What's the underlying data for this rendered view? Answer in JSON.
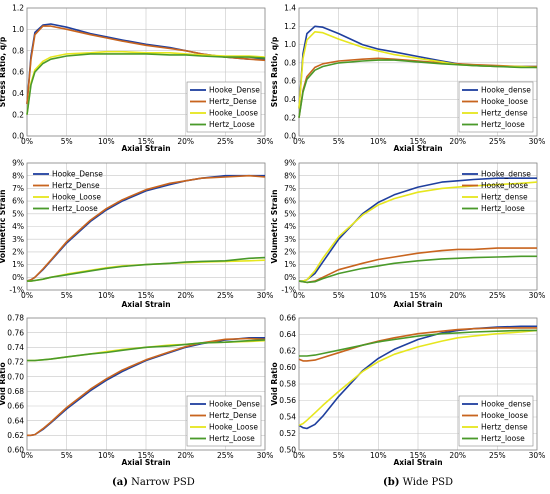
{
  "colors": {
    "series1": "#1f3f9e",
    "series2": "#c8641e",
    "series3": "#e6e61e",
    "series4": "#4a9a2a",
    "grid": "#c8c8c8"
  },
  "captions": [
    {
      "label": "(a)",
      "text": "Narrow PSD"
    },
    {
      "label": "(b)",
      "text": "Wide PSD"
    }
  ],
  "chart_data": [
    {
      "type": "line",
      "xlabel": "Axial Strain",
      "ylabel": "Stress Ratio, q/p",
      "xlim": [
        0,
        30
      ],
      "ylim": [
        0,
        1.2
      ],
      "xunit": "%",
      "yunit": "",
      "xstep": 5,
      "ystep": 0.2,
      "ydec": 1,
      "grid": true,
      "legend": "bottom-right",
      "legend_box": true,
      "x": [
        0,
        0.5,
        1,
        2,
        3,
        5,
        8,
        10,
        12,
        15,
        18,
        20,
        22,
        25,
        28,
        30
      ],
      "series": [
        {
          "name": "Hooke_Dense",
          "values": [
            0.3,
            0.75,
            0.97,
            1.04,
            1.05,
            1.02,
            0.96,
            0.93,
            0.9,
            0.86,
            0.83,
            0.8,
            0.77,
            0.74,
            0.72,
            0.72
          ]
        },
        {
          "name": "Hertz_Dense",
          "values": [
            0.3,
            0.72,
            0.95,
            1.03,
            1.03,
            1.0,
            0.95,
            0.92,
            0.89,
            0.85,
            0.82,
            0.8,
            0.77,
            0.74,
            0.72,
            0.71
          ]
        },
        {
          "name": "Hooke_Loose",
          "values": [
            0.2,
            0.5,
            0.62,
            0.7,
            0.74,
            0.77,
            0.78,
            0.79,
            0.79,
            0.78,
            0.78,
            0.77,
            0.76,
            0.75,
            0.75,
            0.74
          ]
        },
        {
          "name": "Hertz_Loose",
          "values": [
            0.2,
            0.48,
            0.6,
            0.68,
            0.72,
            0.75,
            0.77,
            0.77,
            0.77,
            0.77,
            0.76,
            0.76,
            0.75,
            0.74,
            0.74,
            0.73
          ]
        }
      ]
    },
    {
      "type": "line",
      "xlabel": "Axial Strain",
      "ylabel": "Stress Ratio, q/p",
      "xlim": [
        0,
        30
      ],
      "ylim": [
        0,
        1.4
      ],
      "xunit": "%",
      "yunit": "",
      "xstep": 5,
      "ystep": 0.2,
      "ydec": 1,
      "grid": true,
      "legend": "bottom-right",
      "legend_box": true,
      "x": [
        0,
        0.5,
        1,
        2,
        3,
        5,
        8,
        10,
        12,
        15,
        18,
        20,
        22,
        25,
        28,
        30
      ],
      "series": [
        {
          "name": "Hooke_dense",
          "values": [
            0.3,
            0.9,
            1.12,
            1.2,
            1.19,
            1.12,
            1.0,
            0.95,
            0.92,
            0.87,
            0.82,
            0.79,
            0.77,
            0.76,
            0.76,
            0.76
          ]
        },
        {
          "name": "Hooke_loose",
          "values": [
            0.2,
            0.5,
            0.65,
            0.75,
            0.79,
            0.82,
            0.84,
            0.85,
            0.84,
            0.82,
            0.8,
            0.79,
            0.78,
            0.77,
            0.76,
            0.76
          ]
        },
        {
          "name": "Hertz_dense",
          "values": [
            0.3,
            0.85,
            1.05,
            1.14,
            1.13,
            1.06,
            0.97,
            0.93,
            0.89,
            0.85,
            0.81,
            0.78,
            0.77,
            0.76,
            0.76,
            0.75
          ]
        },
        {
          "name": "Hertz_loose",
          "values": [
            0.2,
            0.48,
            0.62,
            0.72,
            0.76,
            0.8,
            0.82,
            0.83,
            0.83,
            0.81,
            0.79,
            0.78,
            0.77,
            0.76,
            0.75,
            0.75
          ]
        }
      ]
    },
    {
      "type": "line",
      "xlabel": "Axial Strain",
      "ylabel": "Volumetric Strain",
      "xlim": [
        0,
        30
      ],
      "ylim": [
        -1,
        9
      ],
      "xunit": "%",
      "yunit": "%",
      "xstep": 5,
      "ystep": 1,
      "ydec": 0,
      "grid": true,
      "legend": "top-left",
      "legend_box": false,
      "x": [
        0,
        0.5,
        1,
        2,
        3,
        5,
        8,
        10,
        12,
        15,
        18,
        20,
        22,
        25,
        28,
        30
      ],
      "series": [
        {
          "name": "Hooke_Dense",
          "values": [
            -0.3,
            -0.2,
            0.0,
            0.6,
            1.3,
            2.7,
            4.4,
            5.3,
            6.0,
            6.8,
            7.3,
            7.6,
            7.8,
            8.0,
            8.0,
            8.0
          ]
        },
        {
          "name": "Hertz_Dense",
          "values": [
            -0.3,
            -0.2,
            0.0,
            0.65,
            1.35,
            2.8,
            4.5,
            5.4,
            6.1,
            6.9,
            7.4,
            7.6,
            7.8,
            7.9,
            8.0,
            7.9
          ]
        },
        {
          "name": "Hooke_Loose",
          "values": [
            -0.3,
            -0.3,
            -0.25,
            -0.15,
            0.0,
            0.25,
            0.55,
            0.75,
            0.9,
            1.0,
            1.1,
            1.15,
            1.2,
            1.25,
            1.3,
            1.35
          ]
        },
        {
          "name": "Hertz_Loose",
          "values": [
            -0.3,
            -0.3,
            -0.25,
            -0.15,
            0.0,
            0.2,
            0.5,
            0.7,
            0.85,
            1.0,
            1.1,
            1.2,
            1.25,
            1.3,
            1.5,
            1.55
          ]
        }
      ]
    },
    {
      "type": "line",
      "xlabel": "Axial Strain",
      "ylabel": "Volumetric Strain",
      "xlim": [
        0,
        30
      ],
      "ylim": [
        -1,
        9
      ],
      "xunit": "%",
      "yunit": "%",
      "xstep": 5,
      "ystep": 1,
      "ydec": 0,
      "grid": true,
      "legend": "top-right",
      "legend_box": false,
      "x": [
        0,
        0.5,
        1,
        2,
        3,
        5,
        8,
        10,
        12,
        15,
        18,
        20,
        22,
        25,
        28,
        30
      ],
      "series": [
        {
          "name": "Hooke_dense",
          "values": [
            -0.3,
            -0.3,
            -0.2,
            0.3,
            1.2,
            3.0,
            5.0,
            5.9,
            6.5,
            7.1,
            7.5,
            7.6,
            7.7,
            7.8,
            7.8,
            7.8
          ]
        },
        {
          "name": "Hooke_loose",
          "values": [
            -0.3,
            -0.35,
            -0.4,
            -0.3,
            0.0,
            0.6,
            1.1,
            1.4,
            1.6,
            1.9,
            2.1,
            2.2,
            2.2,
            2.3,
            2.3,
            2.3
          ]
        },
        {
          "name": "Hertz_dense",
          "values": [
            -0.3,
            -0.3,
            -0.2,
            0.5,
            1.5,
            3.2,
            4.9,
            5.7,
            6.2,
            6.7,
            7.0,
            7.1,
            7.2,
            7.3,
            7.4,
            7.5
          ]
        },
        {
          "name": "Hertz_loose",
          "values": [
            -0.3,
            -0.35,
            -0.4,
            -0.35,
            -0.1,
            0.3,
            0.7,
            0.9,
            1.1,
            1.3,
            1.45,
            1.5,
            1.55,
            1.6,
            1.65,
            1.65
          ]
        }
      ]
    },
    {
      "type": "line",
      "xlabel": "Axial Strain",
      "ylabel": "Void Ratio",
      "xlim": [
        0,
        30
      ],
      "ylim": [
        0.6,
        0.78
      ],
      "xunit": "%",
      "yunit": "",
      "xstep": 5,
      "ystep": 0.02,
      "ydec": 2,
      "grid": true,
      "legend": "bottom-right",
      "legend_box": true,
      "x": [
        0,
        0.5,
        1,
        2,
        3,
        5,
        8,
        10,
        12,
        15,
        18,
        20,
        22,
        25,
        28,
        30
      ],
      "series": [
        {
          "name": "Hooke_Dense",
          "values": [
            0.62,
            0.62,
            0.621,
            0.628,
            0.637,
            0.656,
            0.681,
            0.695,
            0.707,
            0.722,
            0.733,
            0.74,
            0.745,
            0.75,
            0.753,
            0.753
          ]
        },
        {
          "name": "Hertz_Dense",
          "values": [
            0.62,
            0.62,
            0.621,
            0.629,
            0.638,
            0.658,
            0.683,
            0.697,
            0.709,
            0.723,
            0.734,
            0.741,
            0.746,
            0.751,
            0.752,
            0.751
          ]
        },
        {
          "name": "Hooke_Loose",
          "values": [
            0.722,
            0.722,
            0.722,
            0.723,
            0.724,
            0.727,
            0.731,
            0.734,
            0.737,
            0.74,
            0.743,
            0.744,
            0.746,
            0.747,
            0.748,
            0.749
          ]
        },
        {
          "name": "Hertz_Loose",
          "values": [
            0.722,
            0.722,
            0.722,
            0.723,
            0.724,
            0.727,
            0.731,
            0.733,
            0.736,
            0.74,
            0.742,
            0.744,
            0.746,
            0.747,
            0.749,
            0.75
          ]
        }
      ]
    },
    {
      "type": "line",
      "xlabel": "Axial Strain",
      "ylabel": "Void Ratio",
      "xlim": [
        0,
        30
      ],
      "ylim": [
        0.5,
        0.66
      ],
      "xunit": "%",
      "yunit": "",
      "xstep": 5,
      "ystep": 0.02,
      "ydec": 2,
      "grid": true,
      "legend": "bottom-right",
      "legend_box": true,
      "x": [
        0,
        0.5,
        1,
        2,
        3,
        5,
        8,
        10,
        12,
        15,
        18,
        20,
        22,
        25,
        28,
        30
      ],
      "series": [
        {
          "name": "Hooke_dense",
          "values": [
            0.53,
            0.527,
            0.526,
            0.531,
            0.541,
            0.565,
            0.596,
            0.611,
            0.622,
            0.634,
            0.642,
            0.645,
            0.647,
            0.649,
            0.65,
            0.65
          ]
        },
        {
          "name": "Hooke_loose",
          "values": [
            0.61,
            0.608,
            0.608,
            0.609,
            0.612,
            0.618,
            0.627,
            0.632,
            0.636,
            0.641,
            0.644,
            0.646,
            0.647,
            0.648,
            0.648,
            0.648
          ]
        },
        {
          "name": "Hertz_dense",
          "values": [
            0.53,
            0.532,
            0.536,
            0.545,
            0.554,
            0.571,
            0.595,
            0.607,
            0.616,
            0.625,
            0.632,
            0.636,
            0.638,
            0.641,
            0.643,
            0.645
          ]
        },
        {
          "name": "Hertz_loose",
          "values": [
            0.614,
            0.614,
            0.614,
            0.615,
            0.617,
            0.621,
            0.627,
            0.631,
            0.634,
            0.638,
            0.641,
            0.642,
            0.643,
            0.644,
            0.645,
            0.645
          ]
        }
      ]
    }
  ]
}
